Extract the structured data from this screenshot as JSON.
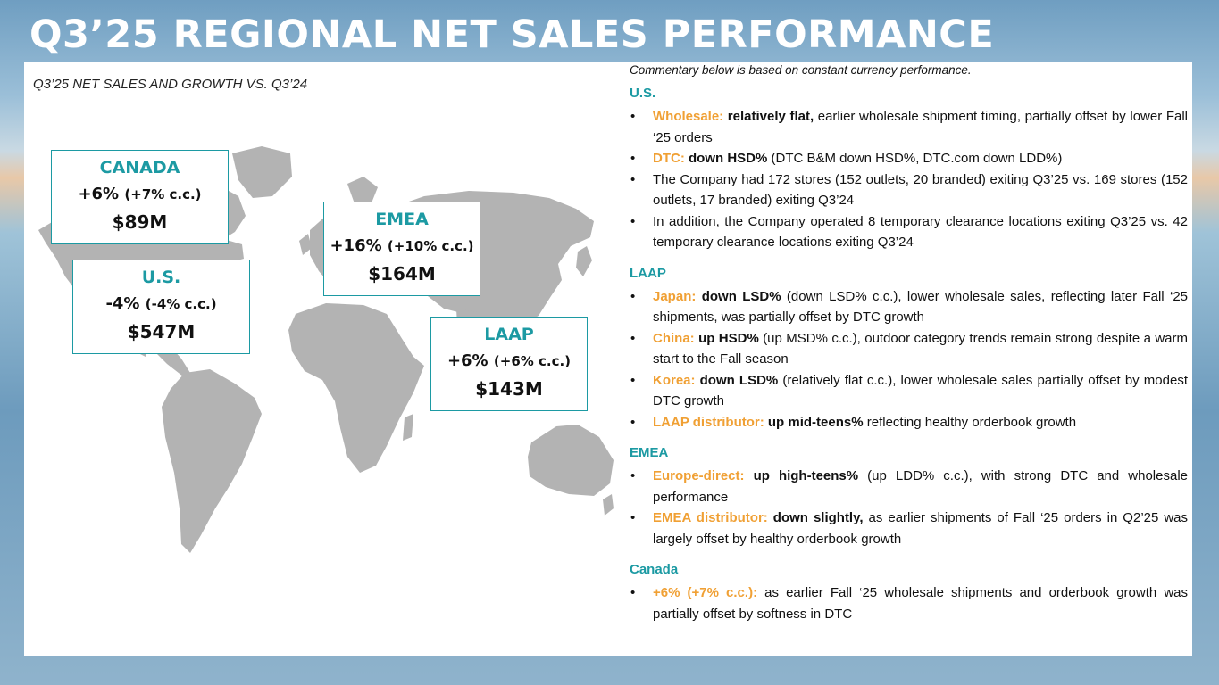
{
  "title": "Q3’25 REGIONAL NET SALES PERFORMANCE",
  "left": {
    "subtitle": "Q3’25 NET SALES AND GROWTH VS. Q3’24",
    "regions": [
      {
        "name": "CANADA",
        "growth": "+6%",
        "cc": "(+7% c.c.)",
        "sales": "$89M"
      },
      {
        "name": "U.S.",
        "growth": "-4%",
        "cc": "(-4% c.c.)",
        "sales": "$547M"
      },
      {
        "name": "EMEA",
        "growth": "+16%",
        "cc": "(+10% c.c.)",
        "sales": "$164M"
      },
      {
        "name": "LAAP",
        "growth": "+6%",
        "cc": "(+6% c.c.)",
        "sales": "$143M"
      }
    ]
  },
  "commentary": "Commentary below is based on constant currency performance.",
  "sections": [
    {
      "heading": "U.S.",
      "items": [
        {
          "label": "Wholesale:",
          "bold": " relatively flat,",
          "text": " earlier wholesale shipment timing, partially offset by lower Fall ‘25 orders"
        },
        {
          "label": "DTC:",
          "bold": " down HSD%",
          "text": " (DTC B&M down HSD%, DTC.com down LDD%)"
        },
        {
          "label": "",
          "bold": "",
          "text": "The Company had 172 stores (152 outlets, 20 branded) exiting Q3’25 vs. 169 stores (152 outlets, 17 branded) exiting Q3’24"
        },
        {
          "label": "",
          "bold": "",
          "text": "In addition, the Company operated 8 temporary clearance locations exiting Q3’25 vs. 42 temporary clearance locations exiting Q3’24"
        }
      ]
    },
    {
      "heading": "LAAP",
      "items": [
        {
          "label": "Japan:",
          "bold": " down LSD%",
          "text": " (down LSD% c.c.), lower wholesale sales, reflecting later Fall ‘25 shipments, was partially offset by DTC growth"
        },
        {
          "label": "China:",
          "bold": " up HSD%",
          "text": " (up MSD% c.c.), outdoor category trends remain strong despite a warm start to the Fall season"
        },
        {
          "label": "Korea:",
          "bold": " down LSD%",
          "text": " (relatively flat c.c.), lower wholesale sales partially offset by modest DTC growth"
        },
        {
          "label": "LAAP distributor:",
          "bold": " up mid-teens%",
          "text": " reflecting healthy orderbook growth"
        }
      ]
    },
    {
      "heading": "EMEA",
      "items": [
        {
          "label": "Europe-direct:",
          "bold": " up high-teens%",
          "text": " (up LDD% c.c.), with strong DTC and wholesale performance"
        },
        {
          "label": "EMEA distributor:",
          "bold": " down slightly,",
          "text": " as earlier shipments of Fall ‘25 orders in Q2’25 was largely offset by healthy orderbook growth"
        }
      ]
    },
    {
      "heading": "Canada",
      "items": [
        {
          "label": "+6% (+7% c.c.):",
          "bold": "",
          "text": " as earlier Fall ‘25 wholesale shipments and orderbook growth was partially offset by softness in DTC"
        }
      ]
    }
  ]
}
